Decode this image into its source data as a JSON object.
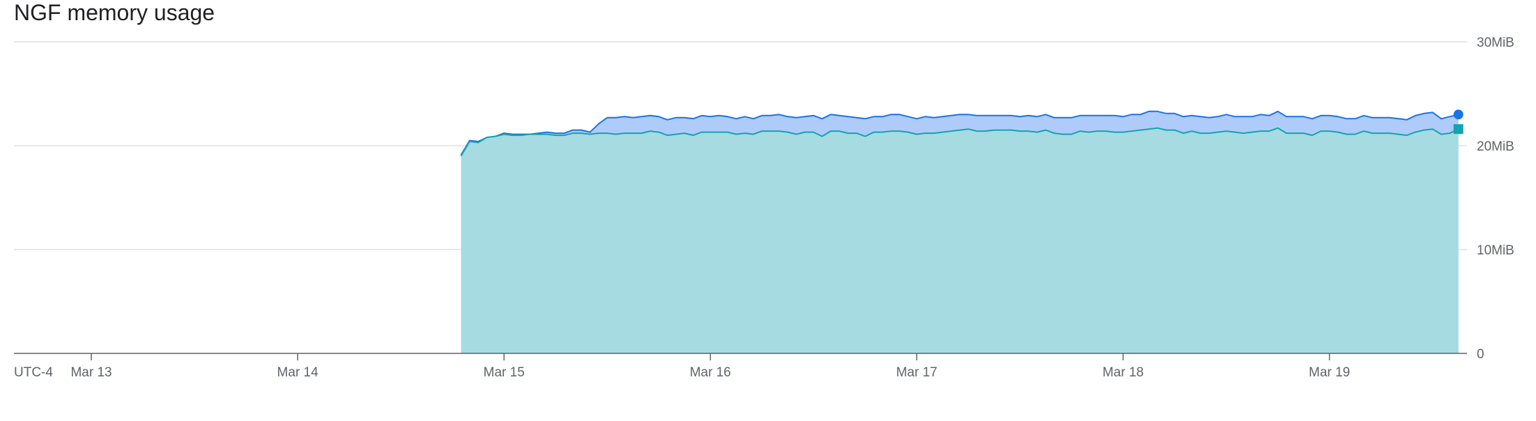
{
  "chart_data": {
    "type": "area",
    "title": "NGF memory usage",
    "timezone_label": "UTC-4",
    "y_unit": "MiB",
    "ylim": [
      0,
      30
    ],
    "y_ticks": [
      {
        "value": 0,
        "label": "0"
      },
      {
        "value": 10,
        "label": "10MiB"
      },
      {
        "value": 20,
        "label": "20MiB"
      },
      {
        "value": 30,
        "label": "30MiB"
      }
    ],
    "x_axis_type": "date",
    "xlim": [
      "2024-03-12T15:00",
      "2024-03-19T16:00"
    ],
    "x_ticks": [
      {
        "value": "2024-03-13T00:00",
        "label": "Mar 13"
      },
      {
        "value": "2024-03-14T00:00",
        "label": "Mar 14"
      },
      {
        "value": "2024-03-15T00:00",
        "label": "Mar 15"
      },
      {
        "value": "2024-03-16T00:00",
        "label": "Mar 16"
      },
      {
        "value": "2024-03-17T00:00",
        "label": "Mar 17"
      },
      {
        "value": "2024-03-18T00:00",
        "label": "Mar 18"
      },
      {
        "value": "2024-03-19T00:00",
        "label": "Mar 19"
      }
    ],
    "grid": true,
    "legend": "none",
    "series": [
      {
        "color": "#1a73e8",
        "fill": "#aecbfa",
        "end_marker": "circle",
        "points": [
          [
            "2024-03-14T19:00",
            19.1
          ],
          [
            "2024-03-14T20:00",
            20.5
          ],
          [
            "2024-03-14T21:00",
            20.4
          ],
          [
            "2024-03-14T22:00",
            20.8
          ],
          [
            "2024-03-14T23:00",
            20.9
          ],
          [
            "2024-03-15T00:00",
            21.2
          ],
          [
            "2024-03-15T01:00",
            21.1
          ],
          [
            "2024-03-15T02:00",
            21.1
          ],
          [
            "2024-03-15T03:00",
            21.1
          ],
          [
            "2024-03-15T04:00",
            21.2
          ],
          [
            "2024-03-15T05:00",
            21.3
          ],
          [
            "2024-03-15T06:00",
            21.2
          ],
          [
            "2024-03-15T07:00",
            21.2
          ],
          [
            "2024-03-15T08:00",
            21.5
          ],
          [
            "2024-03-15T09:00",
            21.5
          ],
          [
            "2024-03-15T10:00",
            21.3
          ],
          [
            "2024-03-15T11:00",
            22.1
          ],
          [
            "2024-03-15T12:00",
            22.7
          ],
          [
            "2024-03-15T13:00",
            22.7
          ],
          [
            "2024-03-15T14:00",
            22.8
          ],
          [
            "2024-03-15T15:00",
            22.7
          ],
          [
            "2024-03-15T16:00",
            22.8
          ],
          [
            "2024-03-15T17:00",
            22.9
          ],
          [
            "2024-03-15T18:00",
            22.8
          ],
          [
            "2024-03-15T19:00",
            22.5
          ],
          [
            "2024-03-15T20:00",
            22.7
          ],
          [
            "2024-03-15T21:00",
            22.7
          ],
          [
            "2024-03-15T22:00",
            22.6
          ],
          [
            "2024-03-15T23:00",
            22.9
          ],
          [
            "2024-03-16T00:00",
            22.8
          ],
          [
            "2024-03-16T01:00",
            22.9
          ],
          [
            "2024-03-16T02:00",
            22.8
          ],
          [
            "2024-03-16T03:00",
            22.6
          ],
          [
            "2024-03-16T04:00",
            22.8
          ],
          [
            "2024-03-16T05:00",
            22.6
          ],
          [
            "2024-03-16T06:00",
            22.9
          ],
          [
            "2024-03-16T07:00",
            22.9
          ],
          [
            "2024-03-16T08:00",
            23.0
          ],
          [
            "2024-03-16T09:00",
            22.8
          ],
          [
            "2024-03-16T10:00",
            22.7
          ],
          [
            "2024-03-16T11:00",
            22.8
          ],
          [
            "2024-03-16T12:00",
            22.9
          ],
          [
            "2024-03-16T13:00",
            22.6
          ],
          [
            "2024-03-16T14:00",
            23.0
          ],
          [
            "2024-03-16T15:00",
            22.9
          ],
          [
            "2024-03-16T16:00",
            22.8
          ],
          [
            "2024-03-16T17:00",
            22.7
          ],
          [
            "2024-03-16T18:00",
            22.6
          ],
          [
            "2024-03-16T19:00",
            22.8
          ],
          [
            "2024-03-16T20:00",
            22.8
          ],
          [
            "2024-03-16T21:00",
            23.0
          ],
          [
            "2024-03-16T22:00",
            23.0
          ],
          [
            "2024-03-16T23:00",
            22.8
          ],
          [
            "2024-03-17T00:00",
            22.6
          ],
          [
            "2024-03-17T01:00",
            22.8
          ],
          [
            "2024-03-17T02:00",
            22.7
          ],
          [
            "2024-03-17T03:00",
            22.8
          ],
          [
            "2024-03-17T04:00",
            22.9
          ],
          [
            "2024-03-17T05:00",
            23.0
          ],
          [
            "2024-03-17T06:00",
            23.0
          ],
          [
            "2024-03-17T07:00",
            22.9
          ],
          [
            "2024-03-17T08:00",
            22.9
          ],
          [
            "2024-03-17T09:00",
            22.9
          ],
          [
            "2024-03-17T10:00",
            22.9
          ],
          [
            "2024-03-17T11:00",
            22.9
          ],
          [
            "2024-03-17T12:00",
            22.8
          ],
          [
            "2024-03-17T13:00",
            22.9
          ],
          [
            "2024-03-17T14:00",
            22.8
          ],
          [
            "2024-03-17T15:00",
            23.0
          ],
          [
            "2024-03-17T16:00",
            22.7
          ],
          [
            "2024-03-17T17:00",
            22.7
          ],
          [
            "2024-03-17T18:00",
            22.7
          ],
          [
            "2024-03-17T19:00",
            22.9
          ],
          [
            "2024-03-17T20:00",
            22.9
          ],
          [
            "2024-03-17T21:00",
            22.9
          ],
          [
            "2024-03-17T22:00",
            22.9
          ],
          [
            "2024-03-17T23:00",
            22.9
          ],
          [
            "2024-03-18T00:00",
            22.8
          ],
          [
            "2024-03-18T01:00",
            23.0
          ],
          [
            "2024-03-18T02:00",
            23.0
          ],
          [
            "2024-03-18T03:00",
            23.3
          ],
          [
            "2024-03-18T04:00",
            23.3
          ],
          [
            "2024-03-18T05:00",
            23.1
          ],
          [
            "2024-03-18T06:00",
            23.1
          ],
          [
            "2024-03-18T07:00",
            22.8
          ],
          [
            "2024-03-18T08:00",
            22.9
          ],
          [
            "2024-03-18T09:00",
            22.8
          ],
          [
            "2024-03-18T10:00",
            22.7
          ],
          [
            "2024-03-18T11:00",
            22.8
          ],
          [
            "2024-03-18T12:00",
            23.0
          ],
          [
            "2024-03-18T13:00",
            22.8
          ],
          [
            "2024-03-18T14:00",
            22.8
          ],
          [
            "2024-03-18T15:00",
            22.8
          ],
          [
            "2024-03-18T16:00",
            23.0
          ],
          [
            "2024-03-18T17:00",
            22.9
          ],
          [
            "2024-03-18T18:00",
            23.3
          ],
          [
            "2024-03-18T19:00",
            22.8
          ],
          [
            "2024-03-18T20:00",
            22.8
          ],
          [
            "2024-03-18T21:00",
            22.8
          ],
          [
            "2024-03-18T22:00",
            22.6
          ],
          [
            "2024-03-18T23:00",
            22.9
          ],
          [
            "2024-03-19T00:00",
            22.9
          ],
          [
            "2024-03-19T01:00",
            22.8
          ],
          [
            "2024-03-19T02:00",
            22.6
          ],
          [
            "2024-03-19T03:00",
            22.6
          ],
          [
            "2024-03-19T04:00",
            22.9
          ],
          [
            "2024-03-19T05:00",
            22.7
          ],
          [
            "2024-03-19T06:00",
            22.7
          ],
          [
            "2024-03-19T07:00",
            22.7
          ],
          [
            "2024-03-19T08:00",
            22.6
          ],
          [
            "2024-03-19T09:00",
            22.5
          ],
          [
            "2024-03-19T10:00",
            22.9
          ],
          [
            "2024-03-19T11:00",
            23.1
          ],
          [
            "2024-03-19T12:00",
            23.2
          ],
          [
            "2024-03-19T13:00",
            22.6
          ],
          [
            "2024-03-19T14:00",
            22.8
          ],
          [
            "2024-03-19T15:00",
            23.0
          ]
        ]
      },
      {
        "color": "#12a4af",
        "fill": "#a6dbe1",
        "end_marker": "square",
        "points": [
          [
            "2024-03-14T19:00",
            19.0
          ],
          [
            "2024-03-14T20:00",
            20.4
          ],
          [
            "2024-03-14T21:00",
            20.3
          ],
          [
            "2024-03-14T22:00",
            20.8
          ],
          [
            "2024-03-14T23:00",
            20.9
          ],
          [
            "2024-03-15T00:00",
            21.1
          ],
          [
            "2024-03-15T01:00",
            21.0
          ],
          [
            "2024-03-15T02:00",
            21.0
          ],
          [
            "2024-03-15T03:00",
            21.1
          ],
          [
            "2024-03-15T04:00",
            21.1
          ],
          [
            "2024-03-15T05:00",
            21.1
          ],
          [
            "2024-03-15T06:00",
            21.0
          ],
          [
            "2024-03-15T07:00",
            21.0
          ],
          [
            "2024-03-15T08:00",
            21.2
          ],
          [
            "2024-03-15T09:00",
            21.2
          ],
          [
            "2024-03-15T10:00",
            21.1
          ],
          [
            "2024-03-15T11:00",
            21.2
          ],
          [
            "2024-03-15T12:00",
            21.2
          ],
          [
            "2024-03-15T13:00",
            21.1
          ],
          [
            "2024-03-15T14:00",
            21.2
          ],
          [
            "2024-03-15T15:00",
            21.2
          ],
          [
            "2024-03-15T16:00",
            21.2
          ],
          [
            "2024-03-15T17:00",
            21.4
          ],
          [
            "2024-03-15T18:00",
            21.3
          ],
          [
            "2024-03-15T19:00",
            21.0
          ],
          [
            "2024-03-15T20:00",
            21.1
          ],
          [
            "2024-03-15T21:00",
            21.2
          ],
          [
            "2024-03-15T22:00",
            21.0
          ],
          [
            "2024-03-15T23:00",
            21.3
          ],
          [
            "2024-03-16T00:00",
            21.3
          ],
          [
            "2024-03-16T01:00",
            21.3
          ],
          [
            "2024-03-16T02:00",
            21.3
          ],
          [
            "2024-03-16T03:00",
            21.1
          ],
          [
            "2024-03-16T04:00",
            21.2
          ],
          [
            "2024-03-16T05:00",
            21.1
          ],
          [
            "2024-03-16T06:00",
            21.4
          ],
          [
            "2024-03-16T07:00",
            21.4
          ],
          [
            "2024-03-16T08:00",
            21.4
          ],
          [
            "2024-03-16T09:00",
            21.3
          ],
          [
            "2024-03-16T10:00",
            21.1
          ],
          [
            "2024-03-16T11:00",
            21.3
          ],
          [
            "2024-03-16T12:00",
            21.3
          ],
          [
            "2024-03-16T13:00",
            20.9
          ],
          [
            "2024-03-16T14:00",
            21.4
          ],
          [
            "2024-03-16T15:00",
            21.4
          ],
          [
            "2024-03-16T16:00",
            21.2
          ],
          [
            "2024-03-16T17:00",
            21.2
          ],
          [
            "2024-03-16T18:00",
            20.9
          ],
          [
            "2024-03-16T19:00",
            21.3
          ],
          [
            "2024-03-16T20:00",
            21.3
          ],
          [
            "2024-03-16T21:00",
            21.4
          ],
          [
            "2024-03-16T22:00",
            21.4
          ],
          [
            "2024-03-16T23:00",
            21.3
          ],
          [
            "2024-03-17T00:00",
            21.1
          ],
          [
            "2024-03-17T01:00",
            21.2
          ],
          [
            "2024-03-17T02:00",
            21.2
          ],
          [
            "2024-03-17T03:00",
            21.3
          ],
          [
            "2024-03-17T04:00",
            21.4
          ],
          [
            "2024-03-17T05:00",
            21.5
          ],
          [
            "2024-03-17T06:00",
            21.6
          ],
          [
            "2024-03-17T07:00",
            21.4
          ],
          [
            "2024-03-17T08:00",
            21.4
          ],
          [
            "2024-03-17T09:00",
            21.5
          ],
          [
            "2024-03-17T10:00",
            21.5
          ],
          [
            "2024-03-17T11:00",
            21.5
          ],
          [
            "2024-03-17T12:00",
            21.4
          ],
          [
            "2024-03-17T13:00",
            21.4
          ],
          [
            "2024-03-17T14:00",
            21.3
          ],
          [
            "2024-03-17T15:00",
            21.5
          ],
          [
            "2024-03-17T16:00",
            21.2
          ],
          [
            "2024-03-17T17:00",
            21.1
          ],
          [
            "2024-03-17T18:00",
            21.1
          ],
          [
            "2024-03-17T19:00",
            21.4
          ],
          [
            "2024-03-17T20:00",
            21.3
          ],
          [
            "2024-03-17T21:00",
            21.4
          ],
          [
            "2024-03-17T22:00",
            21.4
          ],
          [
            "2024-03-17T23:00",
            21.3
          ],
          [
            "2024-03-18T00:00",
            21.3
          ],
          [
            "2024-03-18T01:00",
            21.4
          ],
          [
            "2024-03-18T02:00",
            21.5
          ],
          [
            "2024-03-18T03:00",
            21.6
          ],
          [
            "2024-03-18T04:00",
            21.7
          ],
          [
            "2024-03-18T05:00",
            21.5
          ],
          [
            "2024-03-18T06:00",
            21.5
          ],
          [
            "2024-03-18T07:00",
            21.2
          ],
          [
            "2024-03-18T08:00",
            21.4
          ],
          [
            "2024-03-18T09:00",
            21.2
          ],
          [
            "2024-03-18T10:00",
            21.2
          ],
          [
            "2024-03-18T11:00",
            21.3
          ],
          [
            "2024-03-18T12:00",
            21.4
          ],
          [
            "2024-03-18T13:00",
            21.3
          ],
          [
            "2024-03-18T14:00",
            21.2
          ],
          [
            "2024-03-18T15:00",
            21.3
          ],
          [
            "2024-03-18T16:00",
            21.4
          ],
          [
            "2024-03-18T17:00",
            21.4
          ],
          [
            "2024-03-18T18:00",
            21.7
          ],
          [
            "2024-03-18T19:00",
            21.2
          ],
          [
            "2024-03-18T20:00",
            21.2
          ],
          [
            "2024-03-18T21:00",
            21.2
          ],
          [
            "2024-03-18T22:00",
            21.0
          ],
          [
            "2024-03-18T23:00",
            21.4
          ],
          [
            "2024-03-19T00:00",
            21.4
          ],
          [
            "2024-03-19T01:00",
            21.3
          ],
          [
            "2024-03-19T02:00",
            21.1
          ],
          [
            "2024-03-19T03:00",
            21.1
          ],
          [
            "2024-03-19T04:00",
            21.4
          ],
          [
            "2024-03-19T05:00",
            21.2
          ],
          [
            "2024-03-19T06:00",
            21.2
          ],
          [
            "2024-03-19T07:00",
            21.2
          ],
          [
            "2024-03-19T08:00",
            21.1
          ],
          [
            "2024-03-19T09:00",
            21.0
          ],
          [
            "2024-03-19T10:00",
            21.3
          ],
          [
            "2024-03-19T11:00",
            21.5
          ],
          [
            "2024-03-19T12:00",
            21.6
          ],
          [
            "2024-03-19T13:00",
            21.1
          ],
          [
            "2024-03-19T14:00",
            21.2
          ],
          [
            "2024-03-19T15:00",
            21.6
          ]
        ]
      }
    ]
  }
}
